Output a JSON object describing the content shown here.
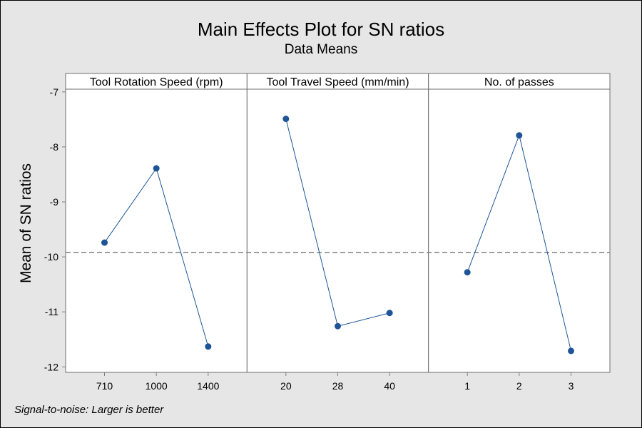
{
  "chart_data": {
    "type": "line",
    "title": "Main Effects Plot for SN ratios",
    "subtitle": "Data Means",
    "ylabel": "Mean of SN ratios",
    "ylim": [
      -12.1,
      -6.95
    ],
    "yticks": [
      -7,
      -8,
      -9,
      -10,
      -11,
      -12
    ],
    "reference_line": -9.92,
    "footnote": "Signal-to-noise: Larger is better",
    "panels": [
      {
        "name": "Tool Rotation Speed (rpm)",
        "categories": [
          "710",
          "1000",
          "1400"
        ],
        "values": [
          -9.74,
          -8.39,
          -11.63
        ]
      },
      {
        "name": "Tool Travel Speed (mm/min)",
        "categories": [
          "20",
          "28",
          "40"
        ],
        "values": [
          -7.49,
          -11.26,
          -11.02
        ]
      },
      {
        "name": "No. of passes",
        "categories": [
          "1",
          "2",
          "3"
        ],
        "values": [
          -10.28,
          -7.79,
          -11.71
        ]
      }
    ],
    "colors": {
      "series": "#1f5596",
      "reference": "#888888",
      "axis": "#7f7f7f"
    }
  }
}
